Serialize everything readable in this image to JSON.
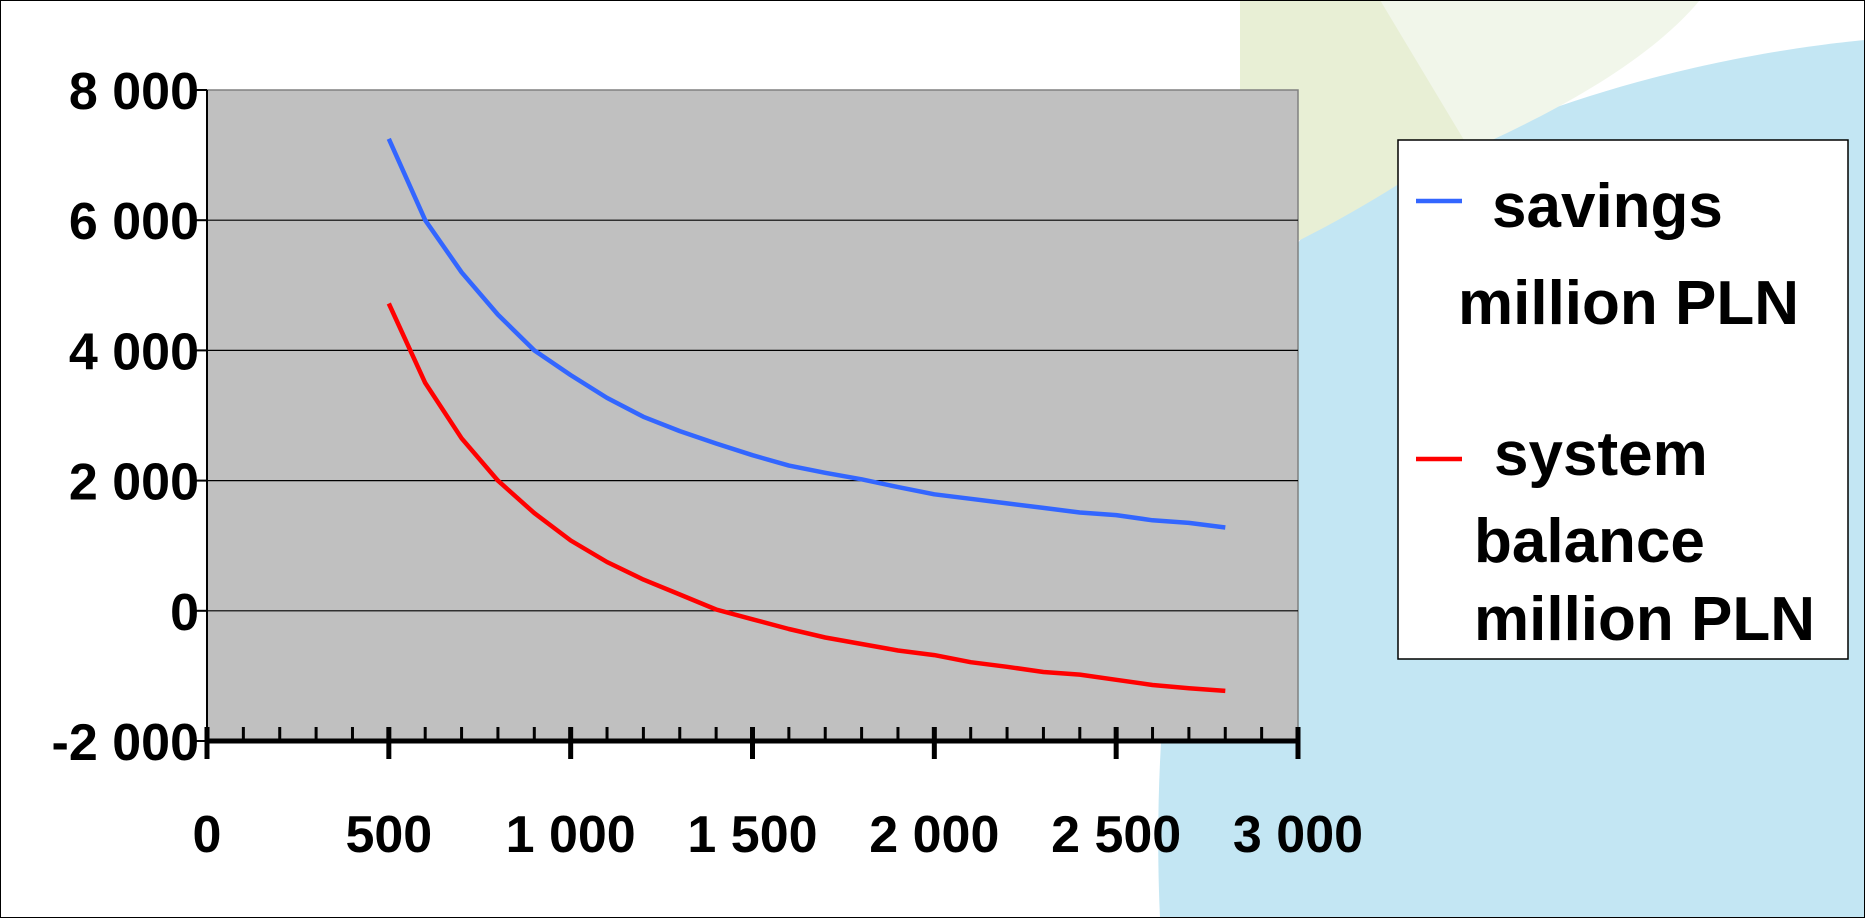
{
  "chart_data": {
    "type": "line",
    "title": "",
    "xlabel": "",
    "ylabel": "",
    "xlim": [
      0,
      3000
    ],
    "ylim": [
      -2000,
      8000
    ],
    "x_ticks": [
      {
        "value": 0,
        "label": "0"
      },
      {
        "value": 500,
        "label": "500"
      },
      {
        "value": 1000,
        "label": "1 000"
      },
      {
        "value": 1500,
        "label": "1 500"
      },
      {
        "value": 2000,
        "label": "2 000"
      },
      {
        "value": 2500,
        "label": "2 500"
      },
      {
        "value": 3000,
        "label": "3 000"
      }
    ],
    "y_ticks": [
      {
        "value": 8000,
        "label": "8 000"
      },
      {
        "value": 6000,
        "label": "6 000"
      },
      {
        "value": 4000,
        "label": "4 000"
      },
      {
        "value": 2000,
        "label": "2 000"
      },
      {
        "value": 0,
        "label": "0"
      },
      {
        "value": -2000,
        "label": "-2 000"
      }
    ],
    "grid": true,
    "plot_background": "#c0c0c0",
    "legend_position": "right",
    "series": [
      {
        "name": "savings million PLN",
        "legend_lines": [
          "savings",
          "million PLN"
        ],
        "color": "#3366ff",
        "x": [
          500,
          600,
          700,
          800,
          900,
          1000,
          1100,
          1200,
          1300,
          1400,
          1500,
          1600,
          1700,
          1800,
          1900,
          2000,
          2100,
          2200,
          2300,
          2400,
          2500,
          2600,
          2700,
          2800
        ],
        "y": [
          7250,
          6000,
          5200,
          4550,
          4000,
          3620,
          3270,
          2980,
          2760,
          2570,
          2390,
          2230,
          2120,
          2020,
          1900,
          1790,
          1720,
          1650,
          1580,
          1510,
          1470,
          1390,
          1350,
          1280
        ]
      },
      {
        "name": "system balance million PLN",
        "legend_lines": [
          "system",
          "balance",
          "million PLN"
        ],
        "color": "#ff0000",
        "x": [
          500,
          600,
          700,
          800,
          900,
          1000,
          1100,
          1200,
          1300,
          1400,
          1500,
          1600,
          1700,
          1800,
          1900,
          2000,
          2100,
          2200,
          2300,
          2400,
          2500,
          2600,
          2700,
          2800
        ],
        "y": [
          4720,
          3500,
          2650,
          2000,
          1500,
          1080,
          750,
          480,
          250,
          20,
          -130,
          -280,
          -410,
          -510,
          -610,
          -680,
          -790,
          -860,
          -940,
          -980,
          -1060,
          -1140,
          -1190,
          -1230
        ]
      }
    ]
  }
}
